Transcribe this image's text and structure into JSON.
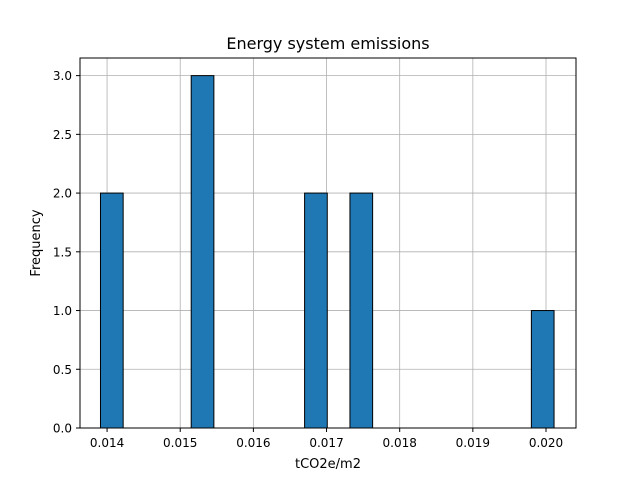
{
  "chart_data": {
    "type": "bar",
    "title": "Energy system emissions",
    "xlabel": "tCO2e/m2",
    "ylabel": "Frequency",
    "xlim": [
      0.01363,
      0.02041
    ],
    "ylim": [
      0,
      3.15
    ],
    "x_ticks": [
      0.014,
      0.015,
      0.016,
      0.017,
      0.018,
      0.019,
      0.02
    ],
    "x_tick_labels": [
      "0.014",
      "0.015",
      "0.016",
      "0.017",
      "0.018",
      "0.019",
      "0.020"
    ],
    "y_ticks": [
      0.0,
      0.5,
      1.0,
      1.5,
      2.0,
      2.5,
      3.0
    ],
    "y_tick_labels": [
      "0.0",
      "0.5",
      "1.0",
      "1.5",
      "2.0",
      "2.5",
      "3.0"
    ],
    "bins": [
      {
        "x0": 0.01391,
        "x1": 0.01422,
        "count": 2
      },
      {
        "x0": 0.01422,
        "x1": 0.01453,
        "count": 0
      },
      {
        "x0": 0.01453,
        "x1": 0.01484,
        "count": 0
      },
      {
        "x0": 0.01484,
        "x1": 0.01515,
        "count": 0
      },
      {
        "x0": 0.01515,
        "x1": 0.01546,
        "count": 3
      },
      {
        "x0": 0.01546,
        "x1": 0.01577,
        "count": 0
      },
      {
        "x0": 0.01577,
        "x1": 0.01608,
        "count": 0
      },
      {
        "x0": 0.01608,
        "x1": 0.01639,
        "count": 0
      },
      {
        "x0": 0.01639,
        "x1": 0.0167,
        "count": 0
      },
      {
        "x0": 0.0167,
        "x1": 0.01701,
        "count": 2
      },
      {
        "x0": 0.01701,
        "x1": 0.01732,
        "count": 0
      },
      {
        "x0": 0.01732,
        "x1": 0.01763,
        "count": 2
      },
      {
        "x0": 0.01763,
        "x1": 0.01794,
        "count": 0
      },
      {
        "x0": 0.01794,
        "x1": 0.01825,
        "count": 0
      },
      {
        "x0": 0.01825,
        "x1": 0.01856,
        "count": 0
      },
      {
        "x0": 0.01856,
        "x1": 0.01887,
        "count": 0
      },
      {
        "x0": 0.01887,
        "x1": 0.01918,
        "count": 0
      },
      {
        "x0": 0.01918,
        "x1": 0.01949,
        "count": 0
      },
      {
        "x0": 0.01949,
        "x1": 0.0198,
        "count": 0
      },
      {
        "x0": 0.0198,
        "x1": 0.02011,
        "count": 1
      }
    ],
    "grid": true,
    "bar_color": "#1f77b4",
    "bar_edge_color": "#000000",
    "grid_color": "#b0b0b0"
  }
}
